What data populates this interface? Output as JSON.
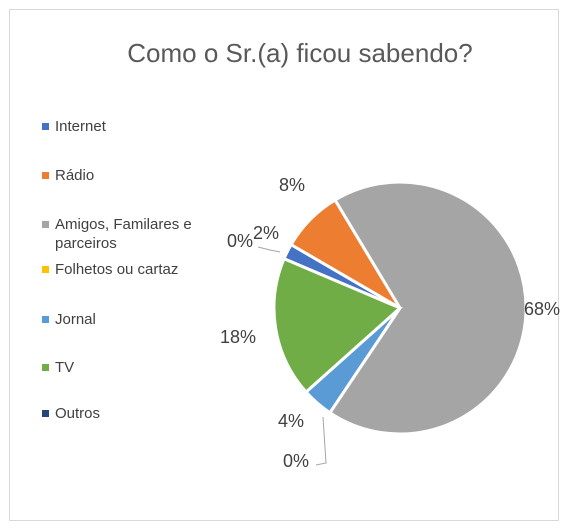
{
  "chart_data": {
    "type": "pie",
    "title": "Como o Sr.(a) ficou sabendo?",
    "categories": [
      "Internet",
      "Rádio",
      "Amigos, Familares e parceiros",
      "Folhetos ou cartaz",
      "Jornal",
      "TV",
      "Outros"
    ],
    "values": [
      2,
      8,
      68,
      0,
      4,
      18,
      0
    ],
    "value_labels": [
      "2%",
      "8%",
      "68%",
      "0%",
      "4%",
      "18%",
      "0%"
    ],
    "colors": [
      "#4472c4",
      "#ed7d31",
      "#a5a5a5",
      "#ffc000",
      "#5b9bd5",
      "#70ad47",
      "#264478"
    ],
    "legend": "left"
  }
}
